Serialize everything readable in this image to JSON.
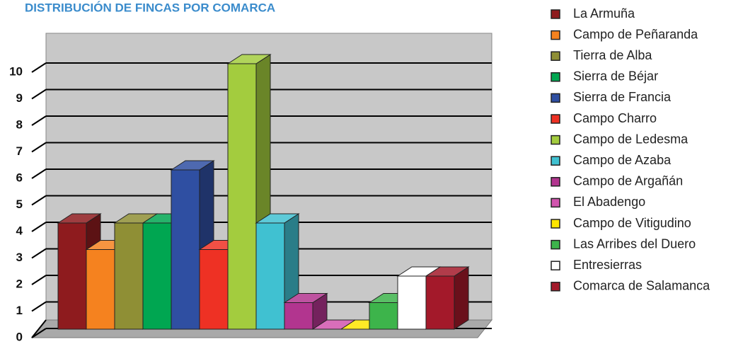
{
  "chart_data": {
    "type": "bar3d",
    "title": "DISTRIBUCIÓN DE FINCAS POR COMARCA",
    "categories": [
      "La Armuña",
      "Campo de Peñaranda",
      "Tierra de Alba",
      "Sierra de Béjar",
      "Sierra de Francia",
      "Campo Charro",
      "Campo de Ledesma",
      "Campo de Azaba",
      "Campo de Argañán",
      "El Abadengo",
      "Campo de Vitigudino",
      "Las Arribes del Duero",
      "Entresierras",
      "Comarca de Salamanca"
    ],
    "values": [
      4,
      3,
      4,
      4,
      6,
      3,
      10,
      4,
      1,
      0,
      0,
      1,
      2,
      2
    ],
    "colors": [
      "#8e1b1e",
      "#f5821f",
      "#8f8f35",
      "#00a651",
      "#2f4fa2",
      "#ee3124",
      "#a3cc3e",
      "#40c1d1",
      "#b2358f",
      "#d154ae",
      "#ffe600",
      "#3db44b",
      "#ffffff",
      "#a3192a"
    ],
    "ylim": [
      0,
      10
    ],
    "yticks": [
      0,
      1,
      2,
      3,
      4,
      5,
      6,
      7,
      8,
      9,
      10
    ],
    "grid": true,
    "legend": "right"
  }
}
